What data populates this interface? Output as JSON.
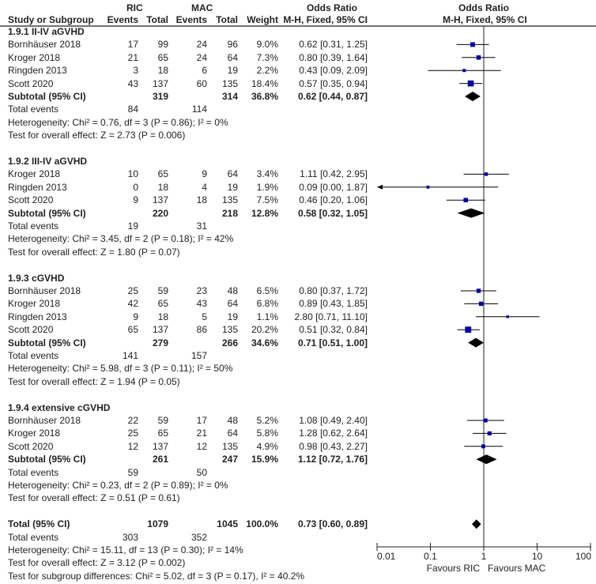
{
  "header": {
    "study_col": "Study or Subgroup",
    "group1": "RIC",
    "group2": "MAC",
    "events": "Events",
    "total": "Total",
    "weight": "Weight",
    "or_title": "Odds Ratio",
    "or_method": "M-H, Fixed, 95% CI",
    "plot_title": "Odds Ratio",
    "plot_method": "M-H, Fixed, 95% CI"
  },
  "chart_data": {
    "type": "forest",
    "x_scale": "log",
    "xlim": [
      0.01,
      100
    ],
    "ticks": [
      "0.01",
      "0.1",
      "1",
      "10",
      "100"
    ],
    "tick_values": [
      0.01,
      0.1,
      1,
      10,
      100
    ],
    "favours_left": "Favours RIC",
    "favours_right": "Favours MAC",
    "square_color": "#0000a0",
    "diamond_color": "#000000",
    "sections": [
      {
        "title": "1.9.1 II-IV aGVHD",
        "studies": [
          {
            "name": "Bornhäuser 2018",
            "e1": "17",
            "n1": "99",
            "e2": "24",
            "n2": "96",
            "weight": "9.0%",
            "ci": "0.62 [0.31, 1.25]",
            "or": 0.62,
            "lo": 0.31,
            "hi": 1.25,
            "w": 9.0
          },
          {
            "name": "Kroger 2018",
            "e1": "21",
            "n1": "65",
            "e2": "24",
            "n2": "64",
            "weight": "7.3%",
            "ci": "0.80 [0.39, 1.64]",
            "or": 0.8,
            "lo": 0.39,
            "hi": 1.64,
            "w": 7.3
          },
          {
            "name": "Ringden 2013",
            "e1": "3",
            "n1": "18",
            "e2": "6",
            "n2": "19",
            "weight": "2.2%",
            "ci": "0.43 [0.09, 2.09]",
            "or": 0.43,
            "lo": 0.09,
            "hi": 2.09,
            "w": 2.2
          },
          {
            "name": "Scott 2020",
            "e1": "43",
            "n1": "137",
            "e2": "60",
            "n2": "135",
            "weight": "18.4%",
            "ci": "0.57 [0.35, 0.94]",
            "or": 0.57,
            "lo": 0.35,
            "hi": 0.94,
            "w": 18.4
          }
        ],
        "subtotal": {
          "label": "Subtotal (95% CI)",
          "n1": "319",
          "n2": "314",
          "weight": "36.8%",
          "ci": "0.62 [0.44, 0.87]",
          "or": 0.62,
          "lo": 0.44,
          "hi": 0.87
        },
        "total_events": {
          "label": "Total events",
          "e1": "84",
          "e2": "114"
        },
        "heterogeneity": "Heterogeneity: Chi² = 0.76, df = 3 (P = 0.86); I² = 0%",
        "overall": "Test for overall effect: Z = 2.73 (P = 0.006)"
      },
      {
        "title": "1.9.2 III-IV aGVHD",
        "studies": [
          {
            "name": "Kroger 2018",
            "e1": "10",
            "n1": "65",
            "e2": "9",
            "n2": "64",
            "weight": "3.4%",
            "ci": "1.11 [0.42, 2.95]",
            "or": 1.11,
            "lo": 0.42,
            "hi": 2.95,
            "w": 3.4
          },
          {
            "name": "Ringden 2013",
            "e1": "0",
            "n1": "18",
            "e2": "4",
            "n2": "19",
            "weight": "1.9%",
            "ci": "0.09 [0.00, 1.87]",
            "or": 0.09,
            "lo": 0.0,
            "hi": 1.87,
            "w": 1.9
          },
          {
            "name": "Scott 2020",
            "e1": "9",
            "n1": "137",
            "e2": "18",
            "n2": "135",
            "weight": "7.5%",
            "ci": "0.46 [0.20, 1.06]",
            "or": 0.46,
            "lo": 0.2,
            "hi": 1.06,
            "w": 7.5
          }
        ],
        "subtotal": {
          "label": "Subtotal (95% CI)",
          "n1": "220",
          "n2": "218",
          "weight": "12.8%",
          "ci": "0.58 [0.32, 1.05]",
          "or": 0.58,
          "lo": 0.32,
          "hi": 1.05
        },
        "total_events": {
          "label": "Total events",
          "e1": "19",
          "e2": "31"
        },
        "heterogeneity": "Heterogeneity: Chi² = 3.45, df = 2 (P = 0.18); I² = 42%",
        "overall": "Test for overall effect: Z = 1.80 (P = 0.07)"
      },
      {
        "title": "1.9.3 cGVHD",
        "studies": [
          {
            "name": "Bornhäuser 2018",
            "e1": "25",
            "n1": "59",
            "e2": "23",
            "n2": "48",
            "weight": "6.5%",
            "ci": "0.80 [0.37, 1.72]",
            "or": 0.8,
            "lo": 0.37,
            "hi": 1.72,
            "w": 6.5
          },
          {
            "name": "Kroger 2018",
            "e1": "42",
            "n1": "65",
            "e2": "43",
            "n2": "64",
            "weight": "6.8%",
            "ci": "0.89 [0.43, 1.85]",
            "or": 0.89,
            "lo": 0.43,
            "hi": 1.85,
            "w": 6.8
          },
          {
            "name": "Ringden 2013",
            "e1": "9",
            "n1": "18",
            "e2": "5",
            "n2": "19",
            "weight": "1.1%",
            "ci": "2.80 [0.71, 11.10]",
            "or": 2.8,
            "lo": 0.71,
            "hi": 11.1,
            "w": 1.1
          },
          {
            "name": "Scott 2020",
            "e1": "65",
            "n1": "137",
            "e2": "86",
            "n2": "135",
            "weight": "20.2%",
            "ci": "0.51 [0.32, 0.84]",
            "or": 0.51,
            "lo": 0.32,
            "hi": 0.84,
            "w": 20.2
          }
        ],
        "subtotal": {
          "label": "Subtotal (95% CI)",
          "n1": "279",
          "n2": "266",
          "weight": "34.6%",
          "ci": "0.71 [0.51, 1.00]",
          "or": 0.71,
          "lo": 0.51,
          "hi": 1.0
        },
        "total_events": {
          "label": "Total events",
          "e1": "141",
          "e2": "157"
        },
        "heterogeneity": "Heterogeneity: Chi² = 5.98, df = 3 (P = 0.11); I² = 50%",
        "overall": "Test for overall effect: Z = 1.94 (P = 0.05)"
      },
      {
        "title": "1.9.4 extensive cGVHD",
        "studies": [
          {
            "name": "Bornhäuser 2018",
            "e1": "22",
            "n1": "59",
            "e2": "17",
            "n2": "48",
            "weight": "5.2%",
            "ci": "1.08 [0.49, 2.40]",
            "or": 1.08,
            "lo": 0.49,
            "hi": 2.4,
            "w": 5.2
          },
          {
            "name": "Kroger 2018",
            "e1": "25",
            "n1": "65",
            "e2": "21",
            "n2": "64",
            "weight": "5.8%",
            "ci": "1.28 [0.62, 2.64]",
            "or": 1.28,
            "lo": 0.62,
            "hi": 2.64,
            "w": 5.8
          },
          {
            "name": "Scott 2020",
            "e1": "12",
            "n1": "137",
            "e2": "12",
            "n2": "135",
            "weight": "4.9%",
            "ci": "0.98 [0.43, 2.27]",
            "or": 0.98,
            "lo": 0.43,
            "hi": 2.27,
            "w": 4.9
          }
        ],
        "subtotal": {
          "label": "Subtotal (95% CI)",
          "n1": "261",
          "n2": "247",
          "weight": "15.9%",
          "ci": "1.12 [0.72, 1.76]",
          "or": 1.12,
          "lo": 0.72,
          "hi": 1.76
        },
        "total_events": {
          "label": "Total events",
          "e1": "59",
          "e2": "50"
        },
        "heterogeneity": "Heterogeneity: Chi² = 0.23, df = 2 (P = 0.89); I² = 0%",
        "overall": "Test for overall effect: Z = 0.51 (P = 0.61)"
      }
    ],
    "total": {
      "label": "Total (95% CI)",
      "n1": "1079",
      "n2": "1045",
      "weight": "100.0%",
      "ci": "0.73 [0.60, 0.89]",
      "or": 0.73,
      "lo": 0.6,
      "hi": 0.89,
      "total_events": {
        "label": "Total events",
        "e1": "303",
        "e2": "352"
      },
      "heterogeneity": "Heterogeneity: Chi² = 15.11, df = 13 (P = 0.30); I² = 14%",
      "overall": "Test for overall effect: Z = 3.12 (P = 0.002)",
      "subgroup": "Test for subgroup differences: Chi² = 5.02, df = 3 (P = 0.17), I² = 40.2%"
    }
  }
}
